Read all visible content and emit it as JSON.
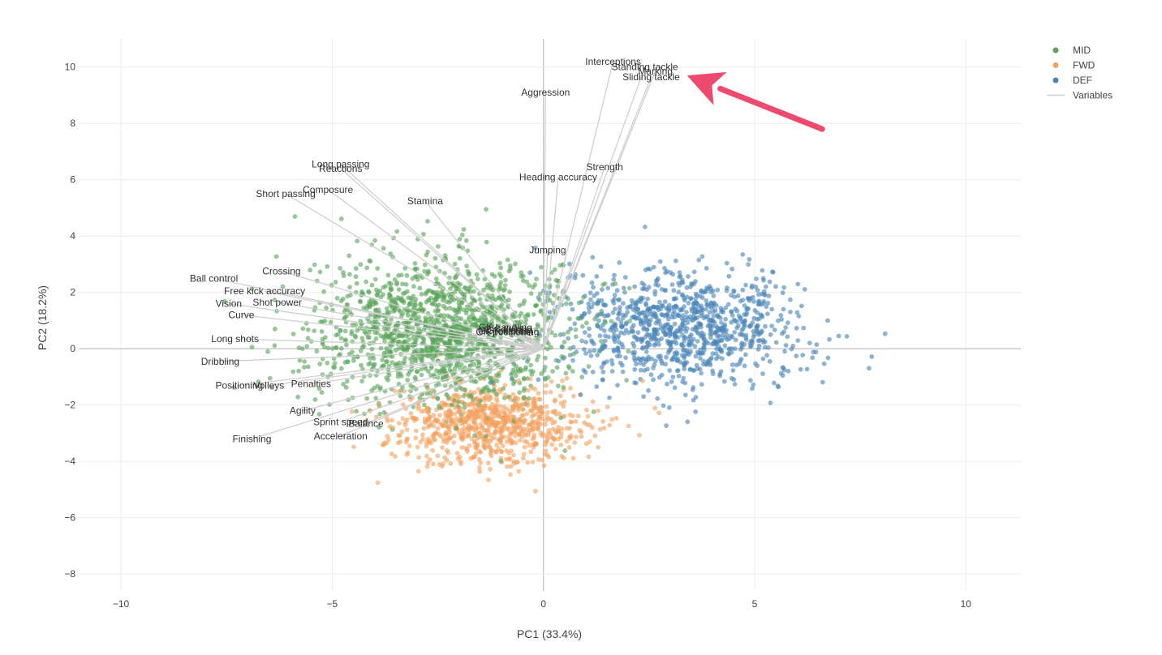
{
  "chart_data": {
    "type": "scatter",
    "xlabel": "PC1 (33.4%)",
    "ylabel": "PC2 (18.2%)",
    "xlim": [
      -11,
      11.3
    ],
    "ylim": [
      -8.6,
      11
    ],
    "x_ticks": [
      -10,
      -5,
      0,
      5,
      10
    ],
    "y_ticks": [
      -8,
      -6,
      -4,
      -2,
      0,
      2,
      4,
      6,
      8,
      10
    ],
    "x_tick_labels": [
      "−10",
      "−5",
      "0",
      "5",
      "10"
    ],
    "y_tick_labels": [
      "−8",
      "−6",
      "−4",
      "−2",
      "0",
      "2",
      "4",
      "6",
      "8",
      "10"
    ],
    "grid": true,
    "legend_placement": "top-right",
    "legend": [
      "MID",
      "FWD",
      "DEF",
      "Variables"
    ],
    "series": [
      {
        "name": "MID",
        "color": "#5aa45a",
        "marker": "point",
        "clusters": [
          {
            "center": [
              -2.4,
              0.6
            ],
            "spread": [
              2.7,
              2.3
            ],
            "count": 1500
          }
        ]
      },
      {
        "name": "FWD",
        "color": "#f4a25f",
        "marker": "point",
        "clusters": [
          {
            "center": [
              -1.3,
              -2.6
            ],
            "spread": [
              2.1,
              1.3
            ],
            "count": 800
          }
        ]
      },
      {
        "name": "DEF",
        "color": "#4b86b8",
        "marker": "point",
        "clusters": [
          {
            "center": [
              3.3,
              0.8
            ],
            "spread": [
              2.6,
              1.9
            ],
            "count": 1000
          }
        ]
      },
      {
        "name": "Variables",
        "color": "#cfcfcf",
        "marker": "line"
      }
    ],
    "variables": [
      {
        "name": "Interceptions",
        "x": 1.65,
        "y": 10.2
      },
      {
        "name": "Standing tackle",
        "x": 2.4,
        "y": 10.0
      },
      {
        "name": "Marking",
        "x": 2.65,
        "y": 9.85
      },
      {
        "name": "Sliding tackle",
        "x": 2.55,
        "y": 9.65
      },
      {
        "name": "Aggression",
        "x": 0.05,
        "y": 9.1
      },
      {
        "name": "Strength",
        "x": 1.45,
        "y": 6.45
      },
      {
        "name": "Heading accuracy",
        "x": 0.35,
        "y": 6.1
      },
      {
        "name": "Long passing",
        "x": -4.8,
        "y": 6.55
      },
      {
        "name": "Reactions",
        "x": -4.8,
        "y": 6.4
      },
      {
        "name": "Composure",
        "x": -5.1,
        "y": 5.65
      },
      {
        "name": "Short passing",
        "x": -6.1,
        "y": 5.5
      },
      {
        "name": "Stamina",
        "x": -2.8,
        "y": 5.25
      },
      {
        "name": "Jumping",
        "x": 0.1,
        "y": 3.5
      },
      {
        "name": "Crossing",
        "x": -6.2,
        "y": 2.75
      },
      {
        "name": "Ball control",
        "x": -7.8,
        "y": 2.5
      },
      {
        "name": "Free kick accuracy",
        "x": -6.6,
        "y": 2.05
      },
      {
        "name": "Vision",
        "x": -7.45,
        "y": 1.6
      },
      {
        "name": "Shot power",
        "x": -6.3,
        "y": 1.65
      },
      {
        "name": "Curve",
        "x": -7.15,
        "y": 1.2
      },
      {
        "name": "Long shots",
        "x": -7.3,
        "y": 0.35
      },
      {
        "name": "Dribbling",
        "x": -7.65,
        "y": -0.45
      },
      {
        "name": "Positioning",
        "x": -7.2,
        "y": -1.3
      },
      {
        "name": "Volleys",
        "x": -6.5,
        "y": -1.3
      },
      {
        "name": "Penalties",
        "x": -5.5,
        "y": -1.25
      },
      {
        "name": "Agility",
        "x": -5.7,
        "y": -2.2
      },
      {
        "name": "Sprint speed",
        "x": -4.8,
        "y": -2.6
      },
      {
        "name": "Balance",
        "x": -4.2,
        "y": -2.65
      },
      {
        "name": "Acceleration",
        "x": -4.8,
        "y": -3.1
      },
      {
        "name": "Finishing",
        "x": -6.9,
        "y": -3.2
      },
      {
        "name": "GK diving",
        "x": -0.9,
        "y": 0.7
      },
      {
        "name": "GK handling",
        "x": -0.9,
        "y": 0.75
      },
      {
        "name": "GK kicking",
        "x": -0.8,
        "y": 0.65
      },
      {
        "name": "GK positioning",
        "x": -0.85,
        "y": 0.6
      },
      {
        "name": "GK reflexes",
        "x": -0.95,
        "y": 0.62
      }
    ],
    "annotations": [
      {
        "type": "arrow",
        "color": "#ee4a6e",
        "from": [
          6.6,
          7.8
        ],
        "to": [
          3.4,
          9.7
        ]
      }
    ]
  }
}
